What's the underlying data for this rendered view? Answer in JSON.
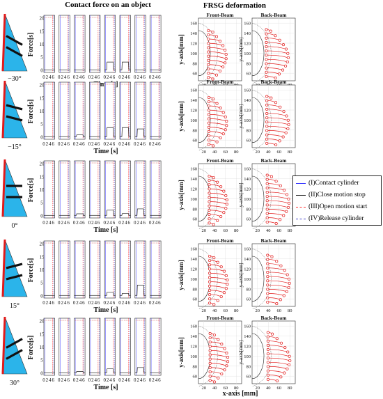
{
  "titles": {
    "force": "Contact force on an object",
    "frsg": "FRSG deformation",
    "front": "Front-Beam",
    "back": "Back-Beam"
  },
  "labels": {
    "force_y": "Force[s]",
    "time_x": "Time [s]",
    "y_axis": "y-axis[mm]",
    "x_axis": "x-axis [mm]"
  },
  "legend": [
    {
      "label": "(I)Contact cylinder",
      "color": "#3a3aff",
      "dash": "solid"
    },
    {
      "label": "(II)Close motion stop",
      "color": "#222222",
      "dash": "solid"
    },
    {
      "label": "(III)Open motion start",
      "color": "#ff3030",
      "dash": "dash"
    },
    {
      "label": "(IV)Release cylinder",
      "color": "#4444cc",
      "dash": "dash"
    }
  ],
  "colors": {
    "triangle_fill": "#2bb4ea",
    "stripe": "#111111",
    "edge_red": "#e21b1b",
    "beam": "#e21b1b",
    "force_line": "#222222"
  },
  "chart_data": {
    "type": "line",
    "force_panels": {
      "time_ticks": [
        "0",
        "2",
        "4",
        "6"
      ],
      "force_ticks": [
        "0",
        "5",
        "10",
        "15",
        "20"
      ],
      "xlim": [
        0,
        7
      ],
      "ylim": [
        -1,
        21
      ],
      "panels_per_row": 8
    },
    "frsg_panels": {
      "x_ticks": [
        "20",
        "40",
        "60",
        "80"
      ],
      "y_ticks": [
        "60",
        "80",
        "100",
        "120",
        "140",
        "160"
      ],
      "xlim": [
        10,
        90
      ],
      "ylim": [
        45,
        170
      ]
    },
    "rows": [
      {
        "angle": "−30°",
        "angle_deg": -30,
        "peaks": [
          0,
          0,
          0,
          0,
          3,
          3,
          0,
          0
        ]
      },
      {
        "angle": "−15°",
        "angle_deg": -15,
        "peaks": [
          0,
          0,
          0.7,
          0,
          3.5,
          3.5,
          3,
          0
        ]
      },
      {
        "angle": "0°",
        "angle_deg": 0,
        "peaks": [
          0,
          0,
          0.6,
          0,
          2,
          0.7,
          2.5,
          0
        ]
      },
      {
        "angle": "15°",
        "angle_deg": 15,
        "peaks": [
          0,
          0,
          0,
          0,
          1.2,
          0.8,
          4,
          0
        ]
      },
      {
        "angle": "30°",
        "angle_deg": 30,
        "peaks": [
          0,
          0,
          0.5,
          0,
          1.5,
          0,
          2,
          0
        ]
      }
    ]
  }
}
